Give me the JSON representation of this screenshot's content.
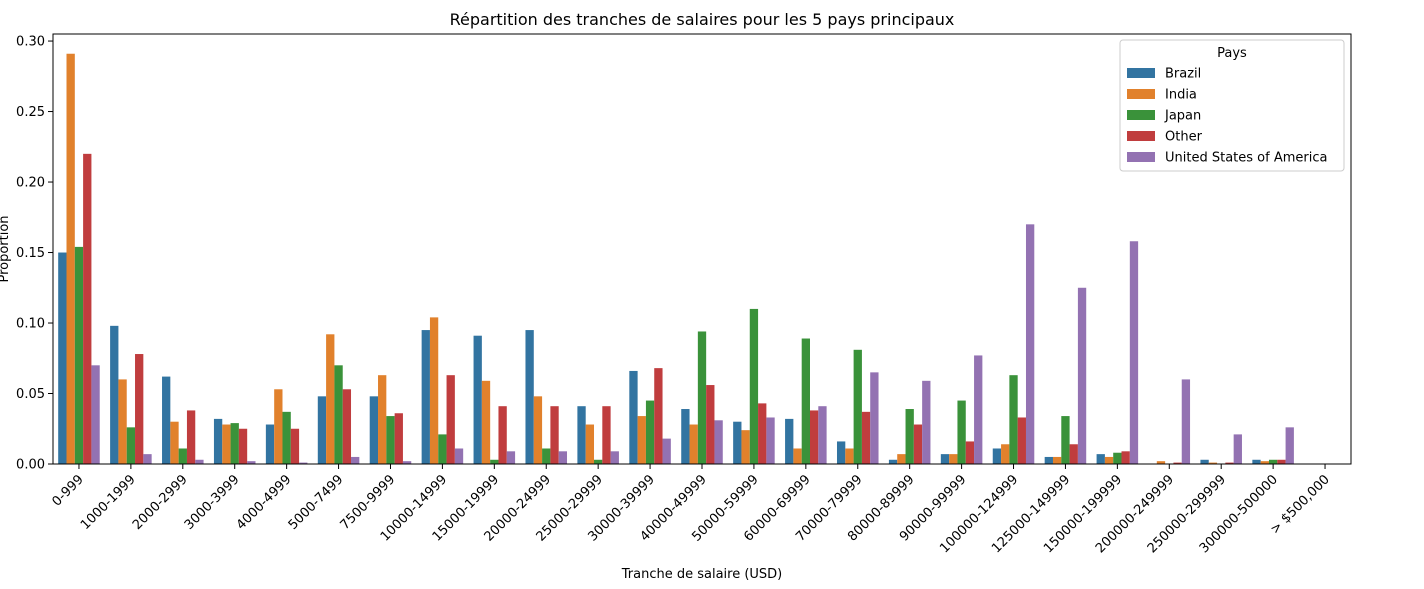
{
  "chart_data": {
    "type": "bar",
    "title": "Répartition des tranches de salaires pour les 5 pays principaux",
    "xlabel": "Tranche de salaire (USD)",
    "ylabel": "Proportion",
    "ylim": [
      0,
      0.305
    ],
    "yticks": [
      0.0,
      0.05,
      0.1,
      0.15,
      0.2,
      0.25,
      0.3
    ],
    "ytick_labels": [
      "0.00",
      "0.05",
      "0.10",
      "0.15",
      "0.20",
      "0.25",
      "0.30"
    ],
    "grid": false,
    "legend": {
      "title": "Pays",
      "position": "top-right"
    },
    "categories": [
      "0-999",
      "1000-1999",
      "2000-2999",
      "3000-3999",
      "4000-4999",
      "5000-7499",
      "7500-9999",
      "10000-14999",
      "15000-19999",
      "20000-24999",
      "25000-29999",
      "30000-39999",
      "40000-49999",
      "50000-59999",
      "60000-69999",
      "70000-79999",
      "80000-89999",
      "90000-99999",
      "100000-124999",
      "125000-149999",
      "150000-199999",
      "200000-249999",
      "250000-299999",
      "300000-500000",
      "> $500,000"
    ],
    "series": [
      {
        "name": "Brazil",
        "color": "#3274a1",
        "values": [
          0.15,
          0.098,
          0.062,
          0.032,
          0.028,
          0.048,
          0.048,
          0.095,
          0.091,
          0.095,
          0.041,
          0.066,
          0.039,
          0.03,
          0.032,
          0.016,
          0.003,
          0.007,
          0.011,
          0.005,
          0.007,
          0.0,
          0.003,
          0.003,
          0.0
        ]
      },
      {
        "name": "India",
        "color": "#e1812c",
        "values": [
          0.291,
          0.06,
          0.03,
          0.028,
          0.053,
          0.092,
          0.063,
          0.104,
          0.059,
          0.048,
          0.028,
          0.034,
          0.028,
          0.024,
          0.011,
          0.011,
          0.007,
          0.007,
          0.014,
          0.005,
          0.005,
          0.002,
          0.001,
          0.002,
          0.0
        ]
      },
      {
        "name": "Japan",
        "color": "#3a923a",
        "values": [
          0.154,
          0.026,
          0.011,
          0.029,
          0.037,
          0.07,
          0.034,
          0.021,
          0.003,
          0.011,
          0.003,
          0.045,
          0.094,
          0.11,
          0.089,
          0.081,
          0.039,
          0.045,
          0.063,
          0.034,
          0.008,
          0.0,
          0.0,
          0.003,
          0.0
        ]
      },
      {
        "name": "Other",
        "color": "#c03d3e",
        "values": [
          0.22,
          0.078,
          0.038,
          0.025,
          0.025,
          0.053,
          0.036,
          0.063,
          0.041,
          0.041,
          0.041,
          0.068,
          0.056,
          0.043,
          0.038,
          0.037,
          0.028,
          0.016,
          0.033,
          0.014,
          0.009,
          0.001,
          0.001,
          0.003,
          0.0
        ]
      },
      {
        "name": "United States of America",
        "color": "#9372b2",
        "values": [
          0.07,
          0.007,
          0.003,
          0.002,
          0.001,
          0.005,
          0.002,
          0.011,
          0.009,
          0.009,
          0.009,
          0.018,
          0.031,
          0.033,
          0.041,
          0.065,
          0.059,
          0.077,
          0.17,
          0.125,
          0.158,
          0.06,
          0.021,
          0.026,
          0.0
        ]
      }
    ]
  }
}
